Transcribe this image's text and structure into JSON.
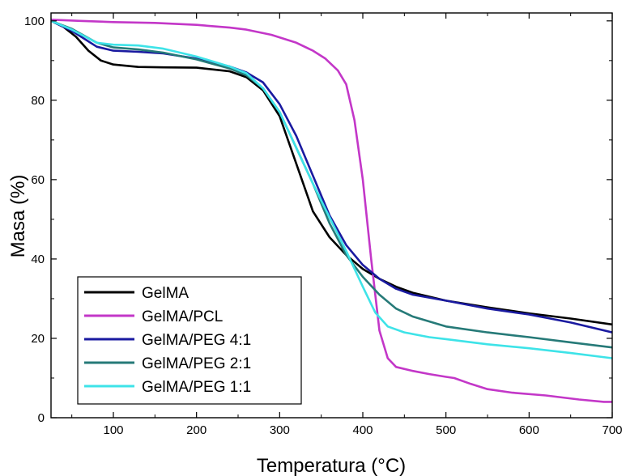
{
  "chart_data": {
    "type": "line",
    "title": "",
    "xlabel": "Temperatura (°C)",
    "ylabel": "Masa (%)",
    "xlim": [
      25,
      700
    ],
    "ylim": [
      0,
      102
    ],
    "x_ticks": [
      100,
      200,
      300,
      400,
      500,
      600,
      700
    ],
    "y_ticks": [
      0,
      20,
      40,
      60,
      80,
      100
    ],
    "grid": false,
    "legend_position": "bottom-left",
    "series": [
      {
        "name": "GelMA",
        "color": "#000000",
        "points": [
          [
            25,
            100
          ],
          [
            40,
            98.5
          ],
          [
            55,
            96
          ],
          [
            70,
            92.5
          ],
          [
            85,
            90
          ],
          [
            100,
            89
          ],
          [
            130,
            88.4
          ],
          [
            160,
            88.3
          ],
          [
            200,
            88.2
          ],
          [
            240,
            87.3
          ],
          [
            260,
            85.8
          ],
          [
            280,
            82.5
          ],
          [
            300,
            76
          ],
          [
            320,
            64
          ],
          [
            340,
            52
          ],
          [
            360,
            45.5
          ],
          [
            380,
            41
          ],
          [
            400,
            37.5
          ],
          [
            420,
            35
          ],
          [
            440,
            33
          ],
          [
            460,
            31.5
          ],
          [
            500,
            29.5
          ],
          [
            550,
            27.8
          ],
          [
            600,
            26.3
          ],
          [
            650,
            25
          ],
          [
            700,
            23.5
          ]
        ]
      },
      {
        "name": "GelMA/PCL",
        "color": "#c337c8",
        "points": [
          [
            25,
            100.3
          ],
          [
            60,
            100
          ],
          [
            100,
            99.7
          ],
          [
            150,
            99.5
          ],
          [
            200,
            99
          ],
          [
            240,
            98.3
          ],
          [
            260,
            97.8
          ],
          [
            290,
            96.5
          ],
          [
            320,
            94.5
          ],
          [
            340,
            92.5
          ],
          [
            355,
            90.5
          ],
          [
            370,
            87.5
          ],
          [
            380,
            84
          ],
          [
            390,
            75
          ],
          [
            400,
            60
          ],
          [
            410,
            40
          ],
          [
            420,
            22
          ],
          [
            430,
            15
          ],
          [
            440,
            12.8
          ],
          [
            460,
            11.8
          ],
          [
            480,
            11
          ],
          [
            500,
            10.3
          ],
          [
            510,
            10
          ],
          [
            530,
            8.5
          ],
          [
            550,
            7.2
          ],
          [
            580,
            6.3
          ],
          [
            620,
            5.6
          ],
          [
            660,
            4.6
          ],
          [
            690,
            4
          ],
          [
            700,
            4
          ]
        ]
      },
      {
        "name": "GelMA/PEG 4:1",
        "color": "#1a1aa0",
        "points": [
          [
            25,
            100
          ],
          [
            50,
            97.5
          ],
          [
            80,
            93.5
          ],
          [
            100,
            92.5
          ],
          [
            130,
            92.2
          ],
          [
            160,
            91.8
          ],
          [
            200,
            90.5
          ],
          [
            240,
            88.5
          ],
          [
            260,
            87
          ],
          [
            280,
            84.5
          ],
          [
            300,
            79
          ],
          [
            320,
            71
          ],
          [
            340,
            61
          ],
          [
            360,
            51
          ],
          [
            380,
            43.5
          ],
          [
            400,
            38.5
          ],
          [
            420,
            35
          ],
          [
            440,
            32.5
          ],
          [
            460,
            31
          ],
          [
            500,
            29.5
          ],
          [
            550,
            27.5
          ],
          [
            600,
            26
          ],
          [
            650,
            24
          ],
          [
            700,
            21.5
          ]
        ]
      },
      {
        "name": "GelMA/PEG 2:1",
        "color": "#267a78",
        "points": [
          [
            25,
            100
          ],
          [
            50,
            98
          ],
          [
            80,
            94.5
          ],
          [
            100,
            93.3
          ],
          [
            130,
            92.8
          ],
          [
            160,
            92
          ],
          [
            200,
            90.3
          ],
          [
            240,
            88
          ],
          [
            260,
            86.3
          ],
          [
            280,
            83
          ],
          [
            300,
            77
          ],
          [
            320,
            68
          ],
          [
            340,
            59
          ],
          [
            360,
            49
          ],
          [
            380,
            41
          ],
          [
            400,
            35.5
          ],
          [
            420,
            31
          ],
          [
            440,
            27.5
          ],
          [
            460,
            25.5
          ],
          [
            500,
            23
          ],
          [
            550,
            21.5
          ],
          [
            600,
            20.3
          ],
          [
            650,
            19
          ],
          [
            700,
            17.7
          ]
        ]
      },
      {
        "name": "GelMA/PEG 1:1",
        "color": "#3ee3e8",
        "points": [
          [
            25,
            100
          ],
          [
            50,
            97.8
          ],
          [
            80,
            94.5
          ],
          [
            100,
            94
          ],
          [
            130,
            93.8
          ],
          [
            160,
            93
          ],
          [
            200,
            91
          ],
          [
            240,
            88.5
          ],
          [
            260,
            86.8
          ],
          [
            280,
            83
          ],
          [
            300,
            77
          ],
          [
            320,
            68
          ],
          [
            340,
            59
          ],
          [
            360,
            50.5
          ],
          [
            380,
            42
          ],
          [
            400,
            33
          ],
          [
            415,
            26.5
          ],
          [
            430,
            23
          ],
          [
            450,
            21.5
          ],
          [
            480,
            20.3
          ],
          [
            500,
            19.8
          ],
          [
            550,
            18.5
          ],
          [
            600,
            17.5
          ],
          [
            650,
            16.3
          ],
          [
            700,
            15
          ]
        ]
      }
    ]
  }
}
